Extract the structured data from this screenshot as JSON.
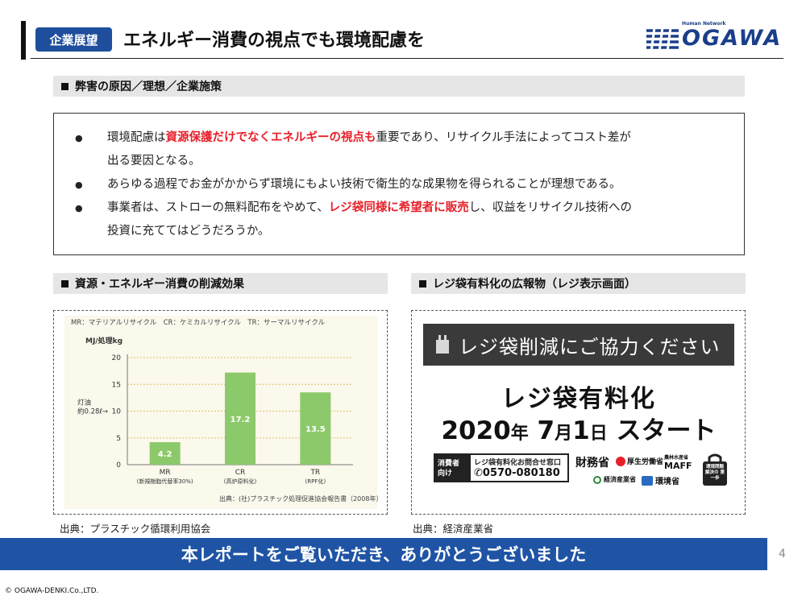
{
  "header": {
    "tag": "企業展望",
    "title": "エネルギー消費の視点でも環境配慮を",
    "logo_tagline": "Human Network",
    "logo_name": "OGAWA"
  },
  "section_main": {
    "title": "弊害の原因／理想／企業施策"
  },
  "bullets": [
    {
      "pre": "環境配慮は",
      "red": "資源保護だけでなくエネルギーの視点も",
      "post": "重要であり、リサイクル手法によってコスト差が",
      "cont": "出る要因となる。"
    },
    {
      "pre": "あらゆる過程でお金がかからず環境にもよい技術で衛生的な成果物を得られることが理想である。",
      "red": "",
      "post": "",
      "cont": ""
    },
    {
      "pre": "事業者は、ストローの無料配布をやめて、",
      "red": "レジ袋同様に希望者に販売",
      "post": "し、収益をリサイクル技術への",
      "cont": "投資に充ててはどうだろうか。"
    }
  ],
  "left_panel": {
    "title": "資源・エネルギー消費の削減効果",
    "source": "出典：プラスチック循環利用協会"
  },
  "right_panel": {
    "title": "レジ袋有料化の広報物（レジ表示画面）",
    "source": "出典：経済産業省",
    "sign_bar": "レジ袋削減にご協力ください",
    "sign_line1": "レジ袋有料化",
    "sign_year": "2020",
    "sign_year_unit": "年",
    "sign_month": "7",
    "sign_month_unit": "月",
    "sign_day": "1",
    "sign_day_unit": "日",
    "sign_start": "スタート",
    "consumer_label_1": "消費者",
    "consumer_label_2": "向け",
    "inquiry_label": "レジ袋有料化お問合せ窓口",
    "phone": "0570-080180",
    "ministry_1": "財務省",
    "ministry_2": "厚生労働省",
    "ministry_3_small": "農林水産省",
    "ministry_3": "MAFF",
    "ministry_4": "経済産業省",
    "ministry_5": "環境省",
    "eco_bag_text": "環境問題 解決の 第一歩"
  },
  "chart_data": {
    "type": "bar",
    "title": "",
    "legend_note": "MR：マテリアルリサイクル　CR：ケミカルリサイクル　TR：サーマルリサイクル",
    "ylabel": "MJ/処理kg",
    "ylim": [
      0,
      20
    ],
    "yticks": [
      0,
      5,
      10,
      15,
      20
    ],
    "categories": [
      "MR",
      "CR",
      "TR"
    ],
    "category_sublabels": [
      "(新規樹脂代替率30%)",
      "(高炉原料化)",
      "(RPF化)"
    ],
    "values": [
      4.2,
      17.2,
      13.5
    ],
    "reference_label_1": "灯油",
    "reference_label_2": "約0.28ℓ→",
    "reference_value": 10,
    "source_note": "出典：(社)プラスチック処理促進協会報告書（2008年）",
    "colors": {
      "bar": "#8cc96a",
      "grid": "#e0c060",
      "axis": "#777777"
    }
  },
  "footer": {
    "message": "本レポートをご覧いただき、ありがとうございました",
    "page": "4",
    "copyright": "© OGAWA-DENKI.Co.,LTD."
  }
}
